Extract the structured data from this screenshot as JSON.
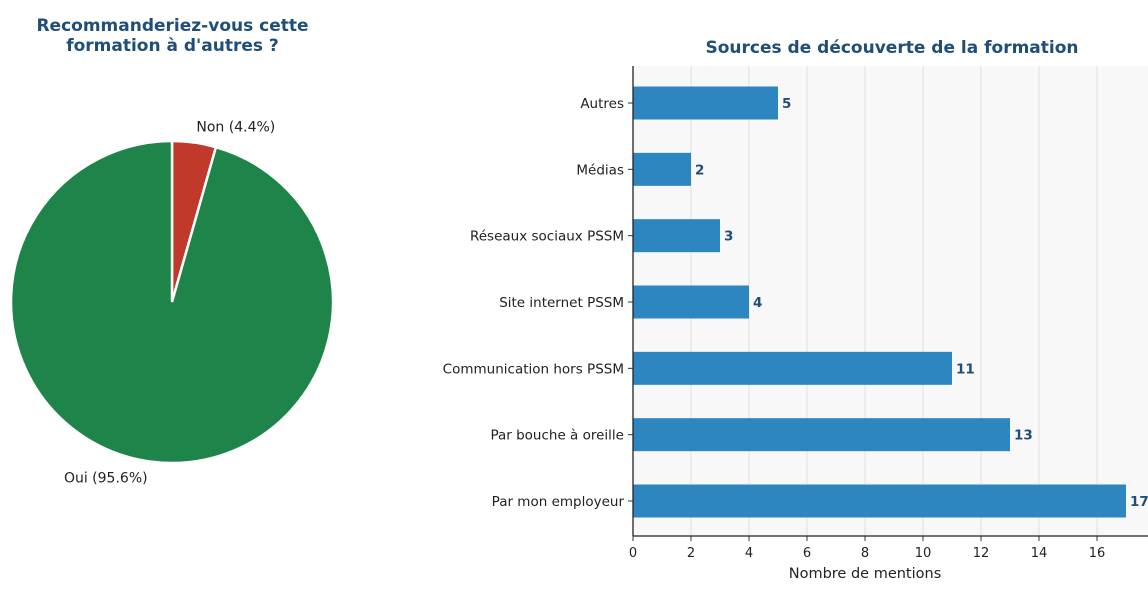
{
  "colors": {
    "title": "#1f4e79",
    "pie_oui": "#1e8449",
    "pie_non": "#c0392b",
    "bar": "#2e86c1",
    "bar_label": "#1f4e79",
    "plot_bg": "#f8f8f8",
    "grid": "#e0e0e0"
  },
  "chart_data": [
    {
      "type": "pie",
      "title_line1": "Recommanderiez-vous cette",
      "title_line2": "formation à d'autres ?",
      "slices": [
        {
          "label": "Oui (95.6%)",
          "value": 95.6,
          "color": "#1e8449"
        },
        {
          "label": "Non (4.4%)",
          "value": 4.4,
          "color": "#c0392b"
        }
      ],
      "start": "top",
      "direction": "clockwise"
    },
    {
      "type": "bar",
      "orientation": "horizontal",
      "title": "Sources de découverte de la formation",
      "categories": [
        "Par mon employeur",
        "Par bouche à oreille",
        "Communication hors PSSM",
        "Site internet PSSM",
        "Réseaux sociaux PSSM",
        "Médias",
        "Autres"
      ],
      "values": [
        17,
        13,
        11,
        4,
        3,
        2,
        5
      ],
      "data_labels": [
        "17",
        "13",
        "11",
        "4",
        "3",
        "2",
        "5"
      ],
      "xlabel": "Nombre de mentions",
      "ylabel": "",
      "xlim": [
        0,
        17
      ],
      "xticks": [
        "0",
        "2",
        "4",
        "6",
        "8",
        "10",
        "12",
        "14",
        "16"
      ],
      "grid": "vertical",
      "color": "#2e86c1"
    }
  ]
}
